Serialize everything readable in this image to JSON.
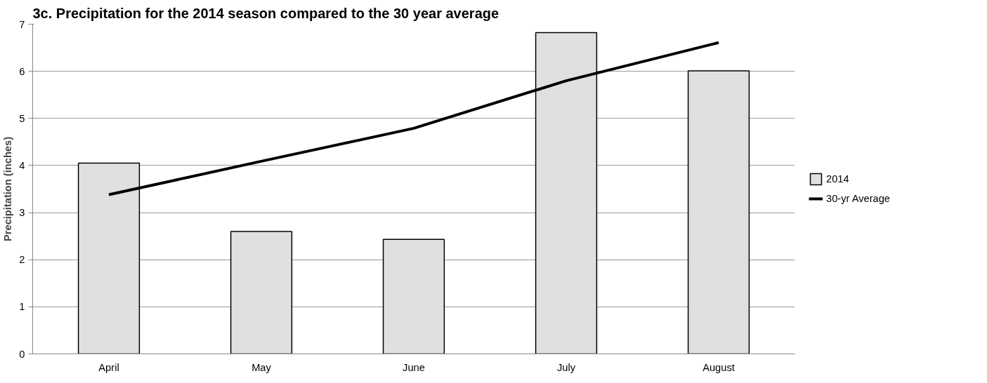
{
  "chart_data": {
    "type": "bar",
    "title": "3c. Precipitation for the 2014 season compared to the 30 year average",
    "ylabel": "Precipitation (inches)",
    "categories": [
      "April",
      "May",
      "June",
      "July",
      "August"
    ],
    "series": [
      {
        "name": "2014",
        "color": "#e0e0e0",
        "values": [
          4.05,
          2.6,
          2.43,
          6.82,
          6.01
        ]
      },
      {
        "name": "30-yr Average",
        "type": "line",
        "color": "#000000",
        "values": [
          3.38,
          4.09,
          4.79,
          5.8,
          6.61
        ]
      }
    ],
    "ylim": [
      0,
      7
    ],
    "yticks": [
      0,
      1,
      2,
      3,
      4,
      5,
      6,
      7
    ],
    "grid": "y",
    "legend": "right"
  }
}
